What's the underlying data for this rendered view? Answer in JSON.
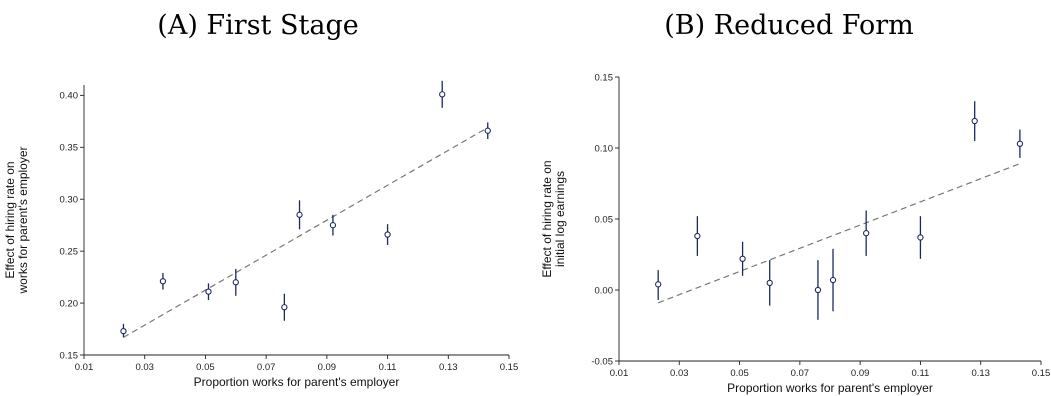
{
  "colors": {
    "point": "#1a2a5e",
    "fit_line": "#777777"
  },
  "chart_data": [
    {
      "type": "scatter",
      "title": "(A) First Stage",
      "xlabel": "Proportion works for parent's employer",
      "ylabel_lines": [
        "Effect of hiring rate on",
        "works for parent's employer"
      ],
      "xlim": [
        0.01,
        0.15
      ],
      "ylim": [
        0.15,
        0.41
      ],
      "xticks": [
        "0.01",
        "0.03",
        "0.05",
        "0.07",
        "0.09",
        "0.11",
        "0.13",
        "0.15"
      ],
      "yticks": [
        "0.15",
        "0.20",
        "0.25",
        "0.30",
        "0.35",
        "0.40"
      ],
      "grid": false,
      "points": [
        {
          "x": 0.023,
          "y": 0.173,
          "lo": 0.167,
          "hi": 0.18
        },
        {
          "x": 0.036,
          "y": 0.221,
          "lo": 0.213,
          "hi": 0.229
        },
        {
          "x": 0.051,
          "y": 0.211,
          "lo": 0.203,
          "hi": 0.219
        },
        {
          "x": 0.06,
          "y": 0.22,
          "lo": 0.207,
          "hi": 0.233
        },
        {
          "x": 0.076,
          "y": 0.196,
          "lo": 0.183,
          "hi": 0.209
        },
        {
          "x": 0.081,
          "y": 0.285,
          "lo": 0.271,
          "hi": 0.299
        },
        {
          "x": 0.092,
          "y": 0.275,
          "lo": 0.265,
          "hi": 0.285
        },
        {
          "x": 0.11,
          "y": 0.266,
          "lo": 0.256,
          "hi": 0.276
        },
        {
          "x": 0.128,
          "y": 0.401,
          "lo": 0.388,
          "hi": 0.414
        },
        {
          "x": 0.143,
          "y": 0.366,
          "lo": 0.358,
          "hi": 0.374
        }
      ],
      "fit": {
        "x": [
          0.023,
          0.143
        ],
        "y": [
          0.167,
          0.369
        ]
      }
    },
    {
      "type": "scatter",
      "title": "(B) Reduced Form",
      "xlabel": "Proportion works for parent's employer",
      "ylabel_lines": [
        "Effect of hiring rate on",
        "initial log earnings"
      ],
      "xlim": [
        0.01,
        0.15
      ],
      "ylim": [
        -0.05,
        0.15
      ],
      "xticks": [
        "0.01",
        "0.03",
        "0.05",
        "0.07",
        "0.09",
        "0.11",
        "0.13",
        "0.15"
      ],
      "yticks": [
        "-0.05",
        "0.00",
        "0.05",
        "0.10",
        "0.15"
      ],
      "grid": false,
      "points": [
        {
          "x": 0.023,
          "y": 0.004,
          "lo": -0.007,
          "hi": 0.014
        },
        {
          "x": 0.036,
          "y": 0.038,
          "lo": 0.024,
          "hi": 0.052
        },
        {
          "x": 0.051,
          "y": 0.022,
          "lo": 0.01,
          "hi": 0.034
        },
        {
          "x": 0.06,
          "y": 0.005,
          "lo": -0.011,
          "hi": 0.021
        },
        {
          "x": 0.076,
          "y": 0.0,
          "lo": -0.021,
          "hi": 0.021
        },
        {
          "x": 0.081,
          "y": 0.007,
          "lo": -0.015,
          "hi": 0.029
        },
        {
          "x": 0.092,
          "y": 0.04,
          "lo": 0.024,
          "hi": 0.056
        },
        {
          "x": 0.11,
          "y": 0.037,
          "lo": 0.022,
          "hi": 0.052
        },
        {
          "x": 0.128,
          "y": 0.119,
          "lo": 0.105,
          "hi": 0.133
        },
        {
          "x": 0.143,
          "y": 0.103,
          "lo": 0.093,
          "hi": 0.113
        }
      ],
      "fit": {
        "x": [
          0.023,
          0.143
        ],
        "y": [
          -0.009,
          0.089
        ]
      }
    }
  ]
}
